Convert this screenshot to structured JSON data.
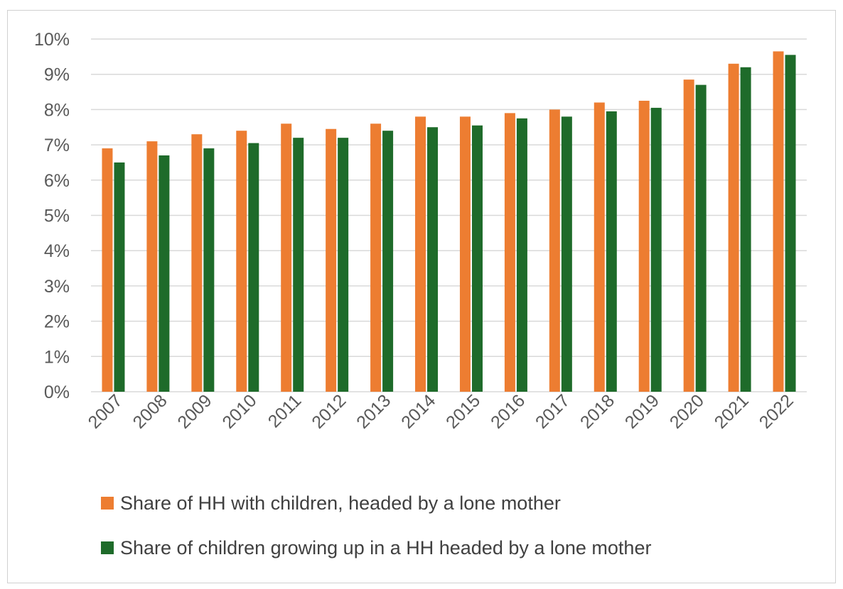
{
  "chart_data": {
    "type": "bar",
    "title": "",
    "xlabel": "",
    "ylabel": "",
    "ylim": [
      0,
      0.1
    ],
    "y_ticks": [
      "0%",
      "1%",
      "2%",
      "3%",
      "4%",
      "5%",
      "6%",
      "7%",
      "8%",
      "9%",
      "10%"
    ],
    "grid": true,
    "legend_position": "bottom",
    "categories": [
      "2007",
      "2008",
      "2009",
      "2010",
      "2011",
      "2012",
      "2013",
      "2014",
      "2015",
      "2016",
      "2017",
      "2018",
      "2019",
      "2020",
      "2021",
      "2022"
    ],
    "series": [
      {
        "name": "Share of HH with children, headed by a lone mother",
        "color": "#ed7d31",
        "values": [
          0.069,
          0.071,
          0.073,
          0.074,
          0.076,
          0.0745,
          0.076,
          0.078,
          0.078,
          0.079,
          0.08,
          0.082,
          0.0825,
          0.0885,
          0.093,
          0.0965
        ]
      },
      {
        "name": "Share of children growing up in a HH headed by a lone mother",
        "color": "#1e6b2a",
        "values": [
          0.065,
          0.067,
          0.069,
          0.0705,
          0.072,
          0.072,
          0.074,
          0.075,
          0.0755,
          0.0775,
          0.078,
          0.0795,
          0.0805,
          0.087,
          0.092,
          0.0955
        ]
      }
    ]
  }
}
